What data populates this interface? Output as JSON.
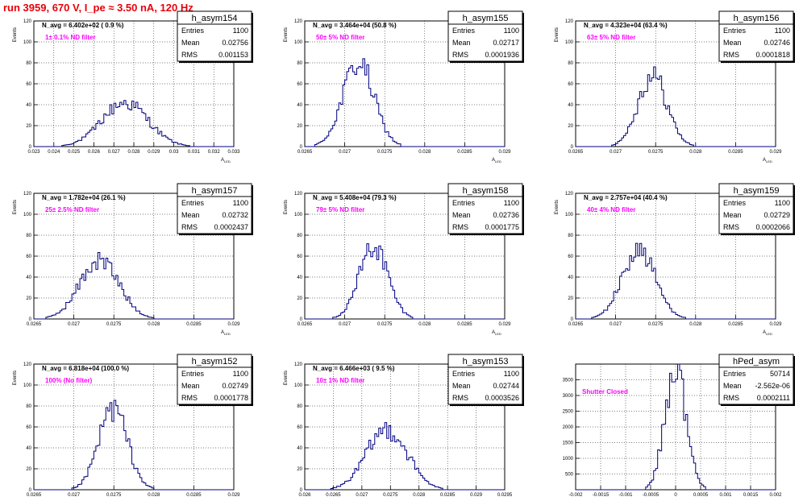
{
  "page": {
    "title": "run 3959,   670 V, I_pe ≈ 3.50 nA, 120 Hz"
  },
  "colors": {
    "title": "#e8000b",
    "histogram": "#00007f",
    "filter_label": "#ff00ff",
    "axis": "#000000"
  },
  "chart_data": [
    {
      "type": "histogram",
      "title": "h_asym154",
      "ylabel": "Events",
      "xlabel": "A",
      "xlabel_sub": "LED",
      "note": "N_avg = 6.402e+02 ( 0.9 %)",
      "filter_label": "1± 0.1% ND filter",
      "stats": {
        "labels": [
          "Entries",
          "Mean",
          "RMS"
        ],
        "values": [
          "1100",
          "0.02756",
          "0.001153"
        ]
      },
      "xlim": [
        0.023,
        0.033
      ],
      "ylim": [
        0,
        120
      ],
      "xticks": [
        0.023,
        0.024,
        0.025,
        0.026,
        0.027,
        0.028,
        0.029,
        0.03,
        0.031,
        0.032,
        0.033
      ],
      "xtick_labels": [
        "0.023",
        "0.024",
        "0.025",
        "0.026",
        "0.027",
        "0.028",
        "0.029",
        "0.03",
        "0.031",
        "0.032",
        "0.033"
      ],
      "yticks": [
        0,
        20,
        40,
        60,
        80,
        100,
        120
      ],
      "ytick_labels": [
        "0",
        "20",
        "40",
        "60",
        "80",
        "100",
        "120"
      ],
      "mean": 0.02756,
      "rms": 0.001153,
      "peak": 42
    },
    {
      "type": "histogram",
      "title": "h_asym155",
      "ylabel": "Events",
      "xlabel": "A",
      "xlabel_sub": "LED",
      "note": "N_avg = 3.464e+04 (50.8 %)",
      "filter_label": "50± 5% ND filter",
      "stats": {
        "labels": [
          "Entries",
          "Mean",
          "RMS"
        ],
        "values": [
          "1100",
          "0.02717",
          "0.0001936"
        ]
      },
      "xlim": [
        0.0265,
        0.029
      ],
      "ylim": [
        0,
        120
      ],
      "xticks": [
        0.0265,
        0.027,
        0.0275,
        0.028,
        0.0285,
        0.029
      ],
      "xtick_labels": [
        "0.0265",
        "0.027",
        "0.0275",
        "0.028",
        "0.0285",
        "0.029"
      ],
      "yticks": [
        0,
        20,
        40,
        60,
        80,
        100,
        120
      ],
      "ytick_labels": [
        "0",
        "20",
        "40",
        "60",
        "80",
        "100",
        "120"
      ],
      "mean": 0.02717,
      "rms": 0.0001936,
      "peak": 80
    },
    {
      "type": "histogram",
      "title": "h_asym156",
      "ylabel": "Events",
      "xlabel": "A",
      "xlabel_sub": "LED",
      "note": "N_avg = 4.323e+04 (63.4 %)",
      "filter_label": "63± 5% ND filter",
      "stats": {
        "labels": [
          "Entries",
          "Mean",
          "RMS"
        ],
        "values": [
          "1100",
          "0.02746",
          "0.0001818"
        ]
      },
      "xlim": [
        0.0265,
        0.029
      ],
      "ylim": [
        0,
        120
      ],
      "xticks": [
        0.0265,
        0.027,
        0.0275,
        0.028,
        0.0285,
        0.029
      ],
      "xtick_labels": [
        "0.0265",
        "0.027",
        "0.0275",
        "0.028",
        "0.0285",
        "0.029"
      ],
      "yticks": [
        0,
        20,
        40,
        60,
        80,
        100,
        120
      ],
      "ytick_labels": [
        "0",
        "20",
        "40",
        "60",
        "80",
        "100",
        "120"
      ],
      "mean": 0.02746,
      "rms": 0.0001818,
      "peak": 68
    },
    {
      "type": "histogram",
      "title": "h_asym157",
      "ylabel": "Events",
      "xlabel": "A",
      "xlabel_sub": "LED",
      "note": "N_avg = 1.782e+04 (26.1 %)",
      "filter_label": "25± 2.5% ND filter",
      "stats": {
        "labels": [
          "Entries",
          "Mean",
          "RMS"
        ],
        "values": [
          "1100",
          "0.02732",
          "0.0002437"
        ]
      },
      "xlim": [
        0.0265,
        0.029
      ],
      "ylim": [
        0,
        120
      ],
      "xticks": [
        0.0265,
        0.027,
        0.0275,
        0.028,
        0.0285,
        0.029
      ],
      "xtick_labels": [
        "0.0265",
        "0.027",
        "0.0275",
        "0.028",
        "0.0285",
        "0.029"
      ],
      "yticks": [
        0,
        20,
        40,
        60,
        80,
        100,
        120
      ],
      "ytick_labels": [
        "0",
        "20",
        "40",
        "60",
        "80",
        "100",
        "120"
      ],
      "mean": 0.02732,
      "rms": 0.0002437,
      "peak": 56
    },
    {
      "type": "histogram",
      "title": "h_asym158",
      "ylabel": "Events",
      "xlabel": "A",
      "xlabel_sub": "LED",
      "note": "N_avg = 5.408e+04 (79.3 %)",
      "filter_label": "79± 5% ND filter",
      "stats": {
        "labels": [
          "Entries",
          "Mean",
          "RMS"
        ],
        "values": [
          "1100",
          "0.02736",
          "0.0001775"
        ]
      },
      "xlim": [
        0.0265,
        0.029
      ],
      "ylim": [
        0,
        120
      ],
      "xticks": [
        0.0265,
        0.027,
        0.0275,
        0.028,
        0.0285,
        0.029
      ],
      "xtick_labels": [
        "0.0265",
        "0.027",
        "0.0275",
        "0.028",
        "0.0285",
        "0.029"
      ],
      "yticks": [
        0,
        20,
        40,
        60,
        80,
        100,
        120
      ],
      "ytick_labels": [
        "0",
        "20",
        "40",
        "60",
        "80",
        "100",
        "120"
      ],
      "mean": 0.02736,
      "rms": 0.0001775,
      "peak": 70
    },
    {
      "type": "histogram",
      "title": "h_asym159",
      "ylabel": "Events",
      "xlabel": "A",
      "xlabel_sub": "LED",
      "note": "N_avg = 2.757e+04 (40.4 %)",
      "filter_label": "40± 4% ND filter",
      "stats": {
        "labels": [
          "Entries",
          "Mean",
          "RMS"
        ],
        "values": [
          "1100",
          "0.02729",
          "0.0002066"
        ]
      },
      "xlim": [
        0.0265,
        0.029
      ],
      "ylim": [
        0,
        120
      ],
      "xticks": [
        0.0265,
        0.027,
        0.0275,
        0.028,
        0.0285,
        0.029
      ],
      "xtick_labels": [
        "0.0265",
        "0.027",
        "0.0275",
        "0.028",
        "0.0285",
        "0.029"
      ],
      "yticks": [
        0,
        20,
        40,
        60,
        80,
        100,
        120
      ],
      "ytick_labels": [
        "0",
        "20",
        "40",
        "60",
        "80",
        "100",
        "120"
      ],
      "mean": 0.02729,
      "rms": 0.0002066,
      "peak": 66
    },
    {
      "type": "histogram",
      "title": "h_asym152",
      "ylabel": "Events",
      "xlabel": "A",
      "xlabel_sub": "LED",
      "note": "N_avg = 6.818e+04 (100.0 %)",
      "filter_label": "100% (No filter)",
      "stats": {
        "labels": [
          "Entries",
          "Mean",
          "RMS"
        ],
        "values": [
          "1100",
          "0.02749",
          "0.0001778"
        ]
      },
      "xlim": [
        0.0265,
        0.029
      ],
      "ylim": [
        0,
        120
      ],
      "xticks": [
        0.0265,
        0.027,
        0.0275,
        0.028,
        0.0285,
        0.029
      ],
      "xtick_labels": [
        "0.0265",
        "0.027",
        "0.0275",
        "0.028",
        "0.0285",
        "0.029"
      ],
      "yticks": [
        0,
        20,
        40,
        60,
        80,
        100,
        120
      ],
      "ytick_labels": [
        "0",
        "20",
        "40",
        "60",
        "80",
        "100",
        "120"
      ],
      "mean": 0.02749,
      "rms": 0.0001778,
      "peak": 78
    },
    {
      "type": "histogram",
      "title": "h_asym153",
      "ylabel": "Events",
      "xlabel": "A",
      "xlabel_sub": "LED",
      "note": "N_avg = 6.466e+03 ( 9.5 %)",
      "filter_label": "10± 1% ND filter",
      "stats": {
        "labels": [
          "Entries",
          "Mean",
          "RMS"
        ],
        "values": [
          "1100",
          "0.02744",
          "0.0003526"
        ]
      },
      "xlim": [
        0.026,
        0.0295
      ],
      "ylim": [
        0,
        120
      ],
      "xticks": [
        0.026,
        0.0265,
        0.027,
        0.0275,
        0.028,
        0.0285,
        0.029,
        0.0295
      ],
      "xtick_labels": [
        "0.026",
        "0.0265",
        "0.027",
        "0.0275",
        "0.028",
        "0.0285",
        "0.029",
        "0.0295"
      ],
      "yticks": [
        0,
        20,
        40,
        60,
        80,
        100,
        120
      ],
      "ytick_labels": [
        "0",
        "20",
        "40",
        "60",
        "80",
        "100",
        "120"
      ],
      "mean": 0.02744,
      "rms": 0.0003526,
      "peak": 58
    },
    {
      "type": "histogram",
      "title": "hPed_asym",
      "ylabel": "",
      "xlabel": "",
      "xlabel_sub": "",
      "note": "",
      "filter_label": "Shutter Closed",
      "stats": {
        "labels": [
          "Entries",
          "Mean",
          "RMS"
        ],
        "values": [
          "50714",
          "-2.562e-06",
          "0.0002111"
        ]
      },
      "xlim": [
        -0.002,
        0.002
      ],
      "ylim": [
        0,
        4000
      ],
      "xticks": [
        -0.002,
        -0.0015,
        -0.001,
        -0.0005,
        0,
        0.0005,
        0.001,
        0.0015,
        0.002
      ],
      "xtick_labels": [
        "-0.002",
        "-0.0015",
        "-0.001",
        "-0.0005",
        "0",
        "0.0005",
        "0.001",
        "0.0015",
        "0.002"
      ],
      "yticks": [
        0,
        500,
        1000,
        1500,
        2000,
        2500,
        3000,
        3500
      ],
      "ytick_labels": [
        "",
        "500",
        "1000",
        "1500",
        "2000",
        "2500",
        "3000",
        "3500"
      ],
      "mean": -2.562e-06,
      "rms": 0.0002111,
      "peak": 3880
    }
  ]
}
